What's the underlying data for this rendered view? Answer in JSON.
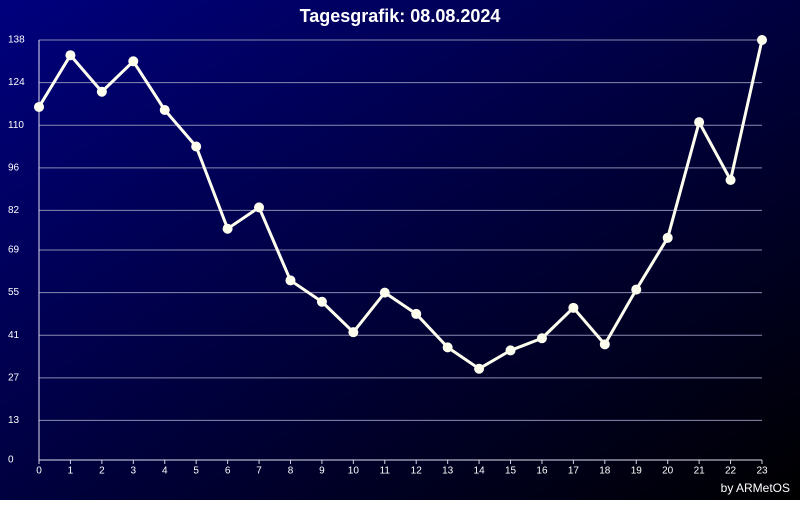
{
  "chart_data": {
    "type": "line",
    "title": "Tagesgrafik: 08.08.2024",
    "credit": "by ARMetOS",
    "x": [
      0,
      1,
      2,
      3,
      4,
      5,
      6,
      7,
      8,
      9,
      10,
      11,
      12,
      13,
      14,
      15,
      16,
      17,
      18,
      19,
      20,
      21,
      22,
      23
    ],
    "series": [
      {
        "color": "#fffff0",
        "values": [
          116,
          133,
          121,
          131,
          115,
          103,
          76,
          83,
          59,
          52,
          42,
          55,
          48,
          37,
          30,
          36,
          40,
          50,
          38,
          56,
          73,
          111,
          92,
          138
        ]
      }
    ],
    "xlim": [
      0,
      23
    ],
    "xticks": [
      0,
      1,
      2,
      3,
      4,
      5,
      6,
      7,
      8,
      9,
      10,
      11,
      12,
      13,
      14,
      15,
      16,
      17,
      18,
      19,
      20,
      21,
      22,
      23
    ],
    "ylim": [
      0,
      138
    ],
    "yticks": [
      0,
      13,
      27,
      41,
      55,
      69,
      82,
      96,
      110,
      124,
      138
    ],
    "grid": true
  }
}
